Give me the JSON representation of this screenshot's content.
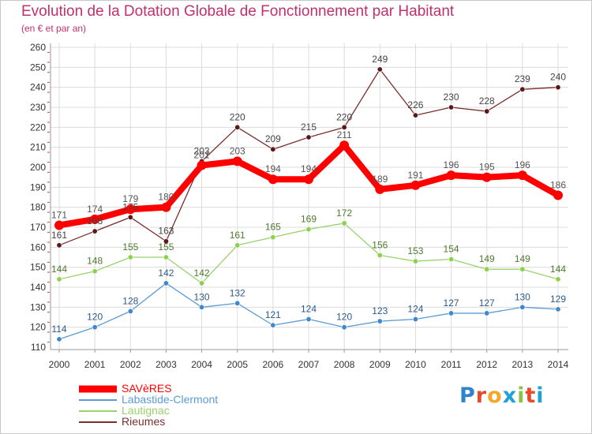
{
  "header": {
    "title": "Evolution de la Dotation Globale de Fonctionnement par Habitant",
    "subtitle": "(en € et par an)"
  },
  "brand": {
    "text": "Proxiti",
    "letter_colors": [
      "#2f83c8",
      "#e8492b",
      "#f1a82b",
      "#1ea0d8",
      "#8bc34a",
      "#e8492b",
      "#1ea0d8"
    ]
  },
  "chart_data": {
    "type": "line",
    "x": [
      "2000",
      "2001",
      "2002",
      "2003",
      "2004",
      "2005",
      "2006",
      "2007",
      "2008",
      "2009",
      "2010",
      "2011",
      "2012",
      "2013",
      "2014"
    ],
    "ylim": [
      110,
      260
    ],
    "yticks": [
      "110",
      "120",
      "130",
      "140",
      "150",
      "160",
      "170",
      "180",
      "190",
      "200",
      "210",
      "220",
      "230",
      "240",
      "250",
      "260"
    ],
    "grid": true,
    "legend_position": "bottom-left",
    "series": [
      {
        "name": "SAVèRES",
        "color": "#ff0000",
        "marker_color": "#ff0000",
        "label_color": "#555555",
        "values": [
          171,
          174,
          179,
          180,
          201,
          203,
          194,
          194,
          211,
          189,
          191,
          196,
          195,
          196,
          186
        ],
        "labels": [
          "171",
          "174",
          "179",
          "180",
          "201",
          "203",
          "194",
          "194",
          "211",
          "189",
          "191",
          "196",
          "195",
          "196",
          "186"
        ]
      },
      {
        "name": "Labastide-Clermont",
        "color": "#5b9bd5",
        "marker_color": "#3f87cf",
        "label_color": "#2e5a8a",
        "values": [
          114,
          120,
          128,
          142,
          130,
          132,
          121,
          124,
          120,
          123,
          124,
          127,
          127,
          130,
          129
        ],
        "labels": [
          "114",
          "120",
          "128",
          "142",
          "130",
          "132",
          "121",
          "124",
          "120",
          "123",
          "124",
          "127",
          "127",
          "130",
          "129"
        ]
      },
      {
        "name": "Lautignac",
        "color": "#99d16b",
        "marker_color": "#8bd14a",
        "label_color": "#4f7a2e",
        "values": [
          144,
          148,
          155,
          155,
          142,
          161,
          165,
          169,
          172,
          156,
          153,
          154,
          149,
          149,
          144
        ],
        "labels": [
          "144",
          "148",
          "155",
          "155",
          "142",
          "161",
          "165",
          "169",
          "172",
          "156",
          "153",
          "154",
          "149",
          "149",
          "144"
        ]
      },
      {
        "name": "Rieumes",
        "color": "#7a2e2e",
        "marker_color": "#5a1818",
        "label_color": "#444444",
        "values": [
          161,
          168,
          175,
          163,
          203,
          220,
          209,
          215,
          220,
          249,
          226,
          230,
          228,
          239,
          240
        ],
        "labels": [
          "161",
          "168",
          "175",
          "163",
          "203",
          "220",
          "209",
          "215",
          "220",
          "249",
          "226",
          "230",
          "228",
          "239",
          "240"
        ]
      }
    ]
  }
}
